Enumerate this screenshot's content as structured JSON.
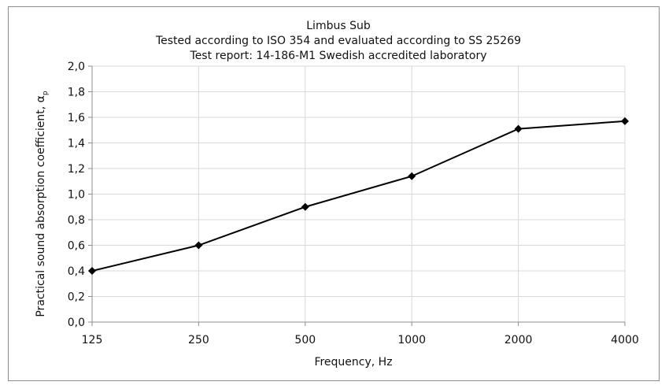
{
  "chart_data": {
    "type": "line",
    "title_lines": [
      "Limbus Sub",
      "Tested according to ISO 354 and evaluated according to SS 25269",
      "Test report: 14-186-M1 Swedish accredited laboratory"
    ],
    "xlabel": "Frequency, Hz",
    "ylabel": "Practical sound absorption coefficient, α",
    "ylabel_subscript": "p",
    "categories": [
      "125",
      "250",
      "500",
      "1000",
      "2000",
      "4000"
    ],
    "values": [
      0.4,
      0.6,
      0.9,
      1.14,
      1.51,
      1.57
    ],
    "ylim": [
      0,
      2
    ],
    "yticks": [
      "0,0",
      "0,2",
      "0,4",
      "0,6",
      "0,8",
      "1,0",
      "1,2",
      "1,4",
      "1,6",
      "1,8",
      "2,0"
    ],
    "grid": true,
    "legend": "none",
    "line_color": "#000000",
    "grid_color": "#d9d9d9",
    "marker": "diamond"
  }
}
